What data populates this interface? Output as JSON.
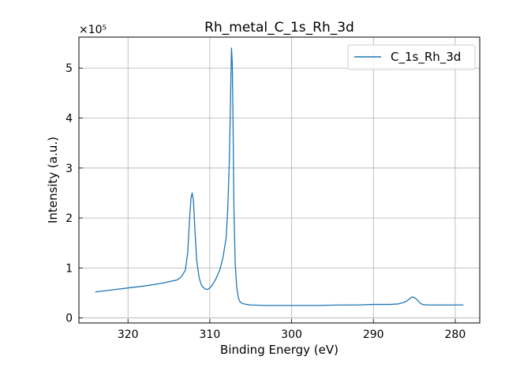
{
  "chart_data": {
    "type": "line",
    "title": "Rh_metal_C_1s_Rh_3d",
    "xlabel": "Binding Energy (eV)",
    "ylabel": "Intensity (a.u.)",
    "y_multiplier": "×10⁵",
    "xlim": [
      326,
      277
    ],
    "ylim": [
      -0.1,
      5.62
    ],
    "x_reversed": true,
    "grid": true,
    "legend_position": "top-right",
    "x_ticks": [
      320,
      310,
      300,
      290,
      280
    ],
    "y_ticks": [
      0,
      1,
      2,
      3,
      4,
      5
    ],
    "line_color": "#1f77b4",
    "series": [
      {
        "name": "C_1s_Rh_3d",
        "x": [
          324,
          322,
          320,
          318,
          316,
          314,
          313.5,
          313,
          312.7,
          312.5,
          312.3,
          312.15,
          312.0,
          311.8,
          311.6,
          311.3,
          311.0,
          310.6,
          310.3,
          310.0,
          309.6,
          309.2,
          308.8,
          308.4,
          308.0,
          307.8,
          307.6,
          307.45,
          307.35,
          307.25,
          307.15,
          307.05,
          306.9,
          306.7,
          306.5,
          306.3,
          306.0,
          305.5,
          305,
          303,
          300,
          297,
          294,
          292,
          290,
          288,
          287,
          286.5,
          286,
          285.6,
          285.3,
          285.0,
          284.7,
          284.3,
          284.0,
          283.5,
          283,
          281,
          279
        ],
        "y": [
          0.52,
          0.56,
          0.6,
          0.64,
          0.69,
          0.76,
          0.82,
          0.95,
          1.3,
          1.9,
          2.4,
          2.5,
          2.35,
          1.7,
          1.15,
          0.8,
          0.65,
          0.58,
          0.57,
          0.6,
          0.68,
          0.8,
          0.95,
          1.2,
          1.6,
          2.2,
          3.2,
          4.5,
          5.4,
          5.1,
          3.8,
          2.2,
          1.1,
          0.6,
          0.4,
          0.32,
          0.29,
          0.27,
          0.26,
          0.25,
          0.25,
          0.25,
          0.26,
          0.26,
          0.27,
          0.27,
          0.28,
          0.3,
          0.33,
          0.38,
          0.42,
          0.41,
          0.37,
          0.3,
          0.27,
          0.26,
          0.26,
          0.26,
          0.26
        ]
      }
    ]
  }
}
